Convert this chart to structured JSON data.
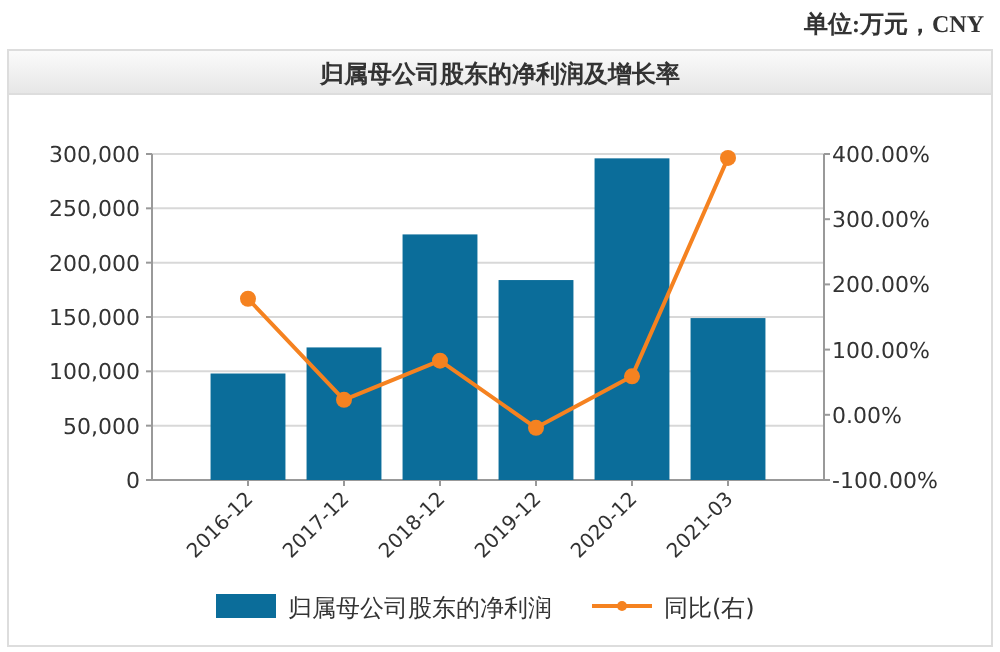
{
  "chart_data": {
    "type": "bar",
    "title": "归属母公司股东的净利润及增长率",
    "annotations": [
      "单位:万元，CNY"
    ],
    "categories": [
      "2016-12",
      "2017-12",
      "2018-12",
      "2019-12",
      "2020-12",
      "2021-03"
    ],
    "series": [
      {
        "name": "归属母公司股东的净利润",
        "color": "#0b6d9a",
        "values": [
          98000,
          122000,
          226000,
          184000,
          296000,
          149000
        ]
      },
      {
        "name": "同比(右)",
        "type": "line",
        "axis": "y2",
        "color": "#f58220",
        "marker": "circle",
        "values": [
          178,
          23,
          83,
          -20,
          59,
          394
        ]
      }
    ],
    "ylim": [
      0,
      300000
    ],
    "yticks": [
      {
        "value": 0,
        "label": "0"
      },
      {
        "value": 50000,
        "label": "50,000"
      },
      {
        "value": 100000,
        "label": "100,000"
      },
      {
        "value": 150000,
        "label": "150,000"
      },
      {
        "value": 200000,
        "label": "200,000"
      },
      {
        "value": 250000,
        "label": "250,000"
      },
      {
        "value": 300000,
        "label": "300,000"
      }
    ],
    "y2lim": [
      -100,
      400
    ],
    "y2ticks": [
      {
        "value": -100,
        "label": "-100.00%"
      },
      {
        "value": 0,
        "label": "0.00%"
      },
      {
        "value": 100,
        "label": "100.00%"
      },
      {
        "value": 200,
        "label": "200.00%"
      },
      {
        "value": 300,
        "label": "300.00%"
      },
      {
        "value": 400,
        "label": "400.00%"
      }
    ],
    "grid": "y",
    "legend": "bottom"
  }
}
